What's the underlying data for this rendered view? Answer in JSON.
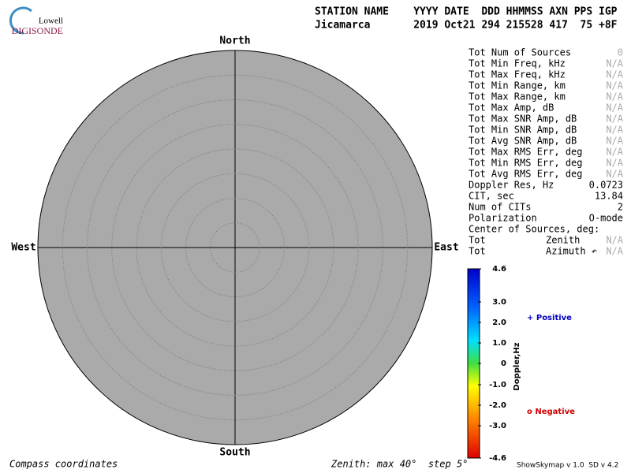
{
  "header": {
    "logo_top": "Lowell",
    "logo_bottom": "DIGISONDE",
    "columns": "STATION NAME    YYYY DATE  DDD HHMMSS AXN PPS IGP",
    "values": "Jicamarca       2019 Oct21 294 215528 417  75 +8F"
  },
  "skymap": {
    "north": "North",
    "south": "South",
    "west": "West",
    "east": "East"
  },
  "stats": {
    "rows": [
      {
        "cells": [
          "Tot Num of Sources",
          "0"
        ],
        "muted": true
      },
      {
        "cells": [
          "Tot Min Freq, kHz",
          "N/A"
        ],
        "muted": true
      },
      {
        "cells": [
          "Tot Max Freq, kHz",
          "N/A"
        ],
        "muted": true
      },
      {
        "cells": [
          "Tot Min Range, km",
          "N/A"
        ],
        "muted": true
      },
      {
        "cells": [
          "Tot Max Range, km",
          "N/A"
        ],
        "muted": true
      },
      {
        "cells": [
          "Tot Max Amp, dB",
          "N/A"
        ],
        "muted": true
      },
      {
        "cells": [
          "Tot Max SNR Amp, dB",
          "N/A"
        ],
        "muted": true
      },
      {
        "cells": [
          "Tot Min SNR Amp, dB",
          "N/A"
        ],
        "muted": true
      },
      {
        "cells": [
          "Tot Avg SNR Amp, dB",
          "N/A"
        ],
        "muted": true
      },
      {
        "cells": [
          "Tot Max RMS Err, deg",
          "N/A"
        ],
        "muted": true
      },
      {
        "cells": [
          "Tot Min RMS Err, deg",
          "N/A"
        ],
        "muted": true
      },
      {
        "cells": [
          "Tot Avg RMS Err, deg",
          "N/A"
        ],
        "muted": true
      },
      {
        "cells": [
          "Doppler Res, Hz",
          "0.0723"
        ],
        "muted": false
      },
      {
        "cells": [
          "CIT, sec",
          "13.84"
        ],
        "muted": false
      },
      {
        "cells": [
          "Num of CITs",
          "2"
        ],
        "muted": false
      },
      {
        "cells": [
          "Polarization",
          "O-mode"
        ],
        "muted": false
      },
      {
        "cells": [
          "Center of Sources, deg:"
        ],
        "muted": false
      },
      {
        "cells": [
          "Tot",
          "Zenith",
          "N/A"
        ],
        "muted": true
      },
      {
        "cells": [
          "Tot",
          "Azimuth ↶",
          "N/A"
        ],
        "muted": true
      }
    ]
  },
  "colorbar": {
    "title": "Doppler,Hz",
    "ticks": [
      "4.6",
      "3.0",
      "2.0",
      "1.0",
      "0",
      "-1.0",
      "-2.0",
      "-3.0",
      "-4.6"
    ]
  },
  "legend": {
    "positive": "+ Positive",
    "negative": "o Negative"
  },
  "footer": {
    "left": "Compass coordinates",
    "middle": "Zenith: max 40°  step 5°",
    "right": "ShowSkymap v 1.0  SD v 4.2"
  }
}
